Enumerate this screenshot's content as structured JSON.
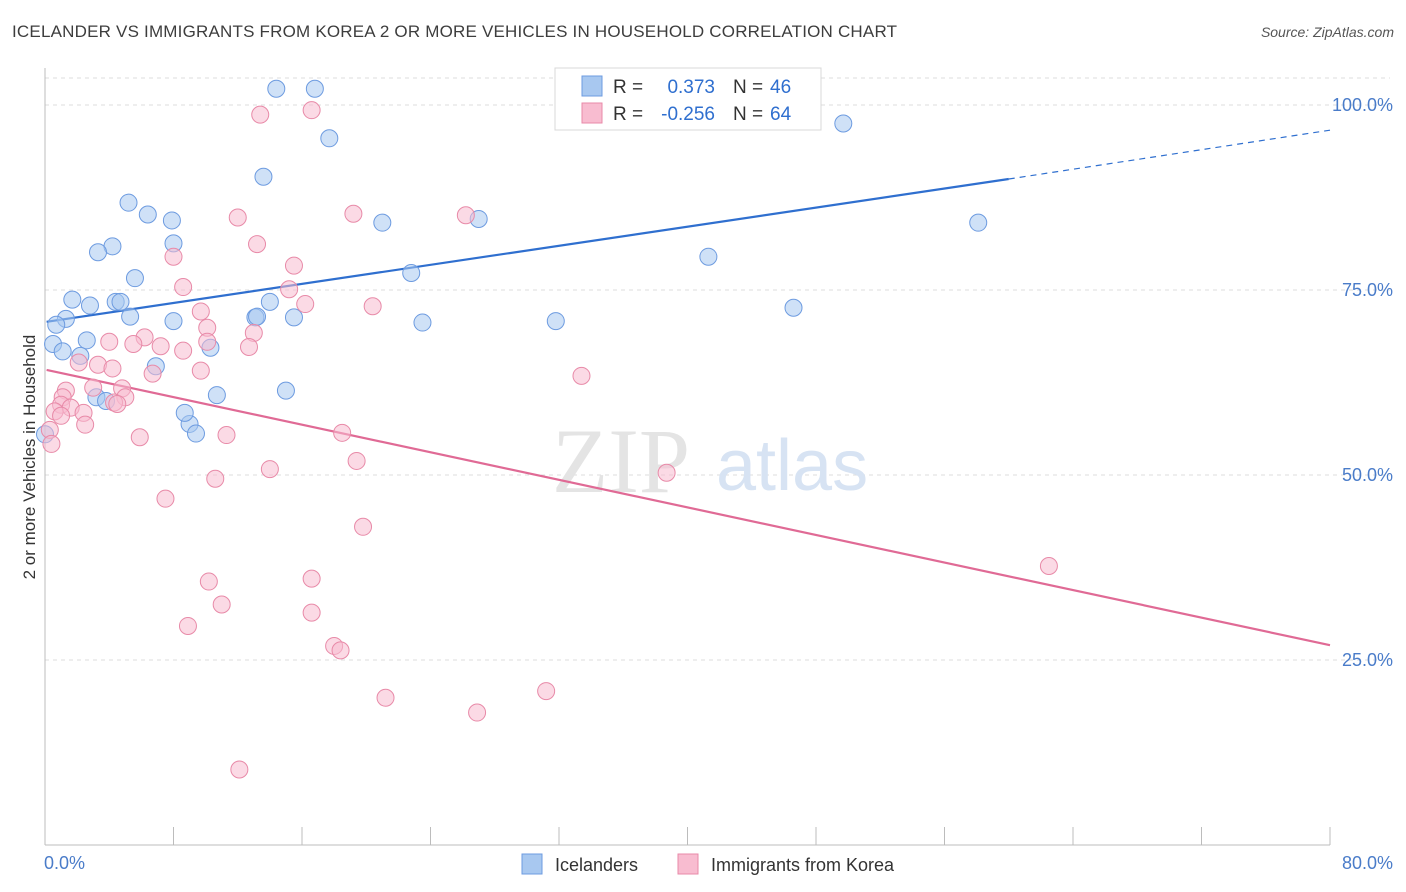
{
  "title": "ICELANDER VS IMMIGRANTS FROM KOREA 2 OR MORE VEHICLES IN HOUSEHOLD CORRELATION CHART",
  "source": "Source: ZipAtlas.com",
  "watermark": {
    "zip": "ZIP",
    "atlas": "atlas"
  },
  "stats_legend": {
    "rows": [
      {
        "r_label": "R =",
        "r_value": "0.373",
        "n_label": "N =",
        "n_value": "46",
        "color": "#a8c8f0",
        "stroke": "#6d9be0"
      },
      {
        "r_label": "R =",
        "r_value": "-0.256",
        "n_label": "N =",
        "n_value": "64",
        "color": "#f8bcd0",
        "stroke": "#e88aa8"
      }
    ]
  },
  "bottom_legend": [
    {
      "label": "Icelanders",
      "color": "#a8c8f0",
      "stroke": "#6d9be0"
    },
    {
      "label": "Immigrants from Korea",
      "color": "#f8bcd0",
      "stroke": "#e88aa8"
    }
  ],
  "chart_data": {
    "type": "scatter",
    "title": "ICELANDER VS IMMIGRANTS FROM KOREA 2 OR MORE VEHICLES IN HOUSEHOLD CORRELATION CHART",
    "xlabel": "",
    "ylabel": "2 or more Vehicles in Household",
    "xlim": [
      0,
      80
    ],
    "ylim": [
      0,
      105
    ],
    "x_tick_labels": [
      {
        "value": 0,
        "label": "0.0%"
      },
      {
        "value": 80,
        "label": "80.0%"
      }
    ],
    "y_tick_labels": [
      {
        "value": 25,
        "label": "25.0%"
      },
      {
        "value": 50,
        "label": "50.0%"
      },
      {
        "value": 75,
        "label": "75.0%"
      },
      {
        "value": 100,
        "label": "100.0%"
      }
    ],
    "grid": true,
    "series": [
      {
        "name": "Icelanders",
        "color": "#a8c8f0",
        "stroke": "#6d9be0",
        "line_color": "#2f6fcf",
        "trend": {
          "x0": 0.1,
          "y0": 70.7,
          "x1": 60.0,
          "y1": 90.0,
          "dash_to_x": 80.0,
          "dash_to_y": 96.6
        },
        "points": [
          [
            14.4,
            102.2
          ],
          [
            16.8,
            102.2
          ],
          [
            17.7,
            95.5
          ],
          [
            13.6,
            90.3
          ],
          [
            49.7,
            97.5
          ],
          [
            5.2,
            86.8
          ],
          [
            6.4,
            85.2
          ],
          [
            7.9,
            84.4
          ],
          [
            8.0,
            81.3
          ],
          [
            4.2,
            80.9
          ],
          [
            3.3,
            80.1
          ],
          [
            21.0,
            84.1
          ],
          [
            27.0,
            84.6
          ],
          [
            41.3,
            79.5
          ],
          [
            58.1,
            84.1
          ],
          [
            5.6,
            76.6
          ],
          [
            22.8,
            77.3
          ],
          [
            1.7,
            73.7
          ],
          [
            2.8,
            72.9
          ],
          [
            4.4,
            73.4
          ],
          [
            4.7,
            73.4
          ],
          [
            14.0,
            73.4
          ],
          [
            46.6,
            72.6
          ],
          [
            1.3,
            71.1
          ],
          [
            0.7,
            70.3
          ],
          [
            5.3,
            71.4
          ],
          [
            8.0,
            70.8
          ],
          [
            13.1,
            71.3
          ],
          [
            15.5,
            71.3
          ],
          [
            23.5,
            70.6
          ],
          [
            31.8,
            70.8
          ],
          [
            2.6,
            68.2
          ],
          [
            0.5,
            67.7
          ],
          [
            1.1,
            66.7
          ],
          [
            2.2,
            66.1
          ],
          [
            10.3,
            67.2
          ],
          [
            6.9,
            64.7
          ],
          [
            15.0,
            61.4
          ],
          [
            10.7,
            60.8
          ],
          [
            3.2,
            60.5
          ],
          [
            3.8,
            60.0
          ],
          [
            9.0,
            56.9
          ],
          [
            9.4,
            55.6
          ],
          [
            0.0,
            55.5
          ],
          [
            8.7,
            58.4
          ],
          [
            13.2,
            71.4
          ]
        ]
      },
      {
        "name": "Immigrants from Korea",
        "color": "#f8bcd0",
        "stroke": "#e88aa8",
        "line_color": "#e06a95",
        "trend": {
          "x0": 0.1,
          "y0": 64.2,
          "x1": 80.0,
          "y1": 27.0
        },
        "points": [
          [
            16.6,
            99.3
          ],
          [
            13.4,
            98.7
          ],
          [
            19.2,
            85.3
          ],
          [
            12.0,
            84.8
          ],
          [
            26.2,
            85.1
          ],
          [
            13.2,
            81.2
          ],
          [
            8.0,
            79.5
          ],
          [
            15.5,
            78.3
          ],
          [
            8.6,
            75.4
          ],
          [
            15.2,
            75.1
          ],
          [
            16.2,
            73.1
          ],
          [
            20.4,
            72.8
          ],
          [
            9.7,
            72.1
          ],
          [
            10.1,
            69.9
          ],
          [
            13.0,
            69.2
          ],
          [
            6.2,
            68.6
          ],
          [
            4.0,
            68.0
          ],
          [
            5.5,
            67.7
          ],
          [
            7.2,
            67.4
          ],
          [
            8.6,
            66.8
          ],
          [
            12.7,
            67.3
          ],
          [
            2.1,
            65.2
          ],
          [
            3.3,
            64.9
          ],
          [
            4.2,
            64.4
          ],
          [
            6.7,
            63.7
          ],
          [
            9.7,
            64.1
          ],
          [
            33.4,
            63.4
          ],
          [
            1.3,
            61.4
          ],
          [
            1.1,
            60.5
          ],
          [
            3.0,
            61.8
          ],
          [
            4.8,
            61.7
          ],
          [
            5.0,
            60.5
          ],
          [
            1.0,
            59.5
          ],
          [
            1.6,
            59.1
          ],
          [
            2.4,
            58.4
          ],
          [
            4.3,
            59.8
          ],
          [
            4.5,
            59.6
          ],
          [
            0.6,
            58.6
          ],
          [
            1.0,
            58.0
          ],
          [
            2.5,
            56.8
          ],
          [
            0.3,
            56.1
          ],
          [
            5.9,
            55.1
          ],
          [
            11.3,
            55.4
          ],
          [
            18.5,
            55.7
          ],
          [
            0.4,
            54.2
          ],
          [
            19.4,
            51.9
          ],
          [
            14.0,
            50.8
          ],
          [
            38.7,
            50.3
          ],
          [
            10.6,
            49.5
          ],
          [
            7.5,
            46.8
          ],
          [
            19.8,
            43.0
          ],
          [
            62.5,
            37.7
          ],
          [
            10.2,
            35.6
          ],
          [
            16.6,
            36.0
          ],
          [
            11.0,
            32.5
          ],
          [
            16.6,
            31.4
          ],
          [
            8.9,
            29.6
          ],
          [
            18.0,
            26.9
          ],
          [
            18.4,
            26.3
          ],
          [
            31.2,
            20.8
          ],
          [
            21.2,
            19.9
          ],
          [
            26.9,
            17.9
          ],
          [
            12.1,
            10.2
          ],
          [
            10.1,
            68.0
          ]
        ]
      }
    ]
  }
}
